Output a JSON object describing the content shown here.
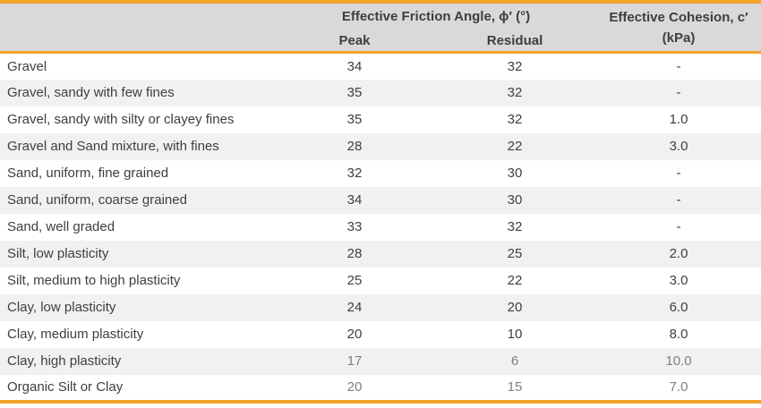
{
  "chart_data": {
    "type": "table",
    "headers": {
      "friction_group": "Effective Friction Angle, ϕ′ (°)",
      "peak": "Peak",
      "residual": "Residual",
      "cohesion_line1": "Effective Cohesion, c′",
      "cohesion_line2": "(kPa)"
    },
    "rows": [
      {
        "material": "Gravel",
        "peak": "34",
        "residual": "32",
        "cohesion": "-",
        "muted": false
      },
      {
        "material": "Gravel, sandy with few fines",
        "peak": "35",
        "residual": "32",
        "cohesion": "-",
        "muted": false
      },
      {
        "material": "Gravel, sandy with silty or clayey fines",
        "peak": "35",
        "residual": "32",
        "cohesion": "1.0",
        "muted": false
      },
      {
        "material": "Gravel and Sand mixture, with fines",
        "peak": "28",
        "residual": "22",
        "cohesion": "3.0",
        "muted": false
      },
      {
        "material": "Sand, uniform, fine grained",
        "peak": "32",
        "residual": "30",
        "cohesion": "-",
        "muted": false
      },
      {
        "material": "Sand, uniform, coarse grained",
        "peak": "34",
        "residual": "30",
        "cohesion": "-",
        "muted": false
      },
      {
        "material": "Sand, well graded",
        "peak": "33",
        "residual": "32",
        "cohesion": "-",
        "muted": false
      },
      {
        "material": "Silt, low plasticity",
        "peak": "28",
        "residual": "25",
        "cohesion": "2.0",
        "muted": false
      },
      {
        "material": "Silt, medium to high plasticity",
        "peak": "25",
        "residual": "22",
        "cohesion": "3.0",
        "muted": false
      },
      {
        "material": "Clay, low plasticity",
        "peak": "24",
        "residual": "20",
        "cohesion": "6.0",
        "muted": false
      },
      {
        "material": "Clay, medium plasticity",
        "peak": "20",
        "residual": "10",
        "cohesion": "8.0",
        "muted": false
      },
      {
        "material": "Clay, high plasticity",
        "peak": "17",
        "residual": "6",
        "cohesion": "10.0",
        "muted": true
      },
      {
        "material": "Organic Silt or Clay",
        "peak": "20",
        "residual": "15",
        "cohesion": "7.0",
        "muted": true
      }
    ]
  },
  "colors": {
    "accent": "#F4A42A",
    "header_bg": "#D9D9D9",
    "stripe_bg": "#F1F1F1",
    "text": "#3E3E3E",
    "muted_text": "#7F7F7F",
    "page_bg": "#FFFFFF"
  }
}
